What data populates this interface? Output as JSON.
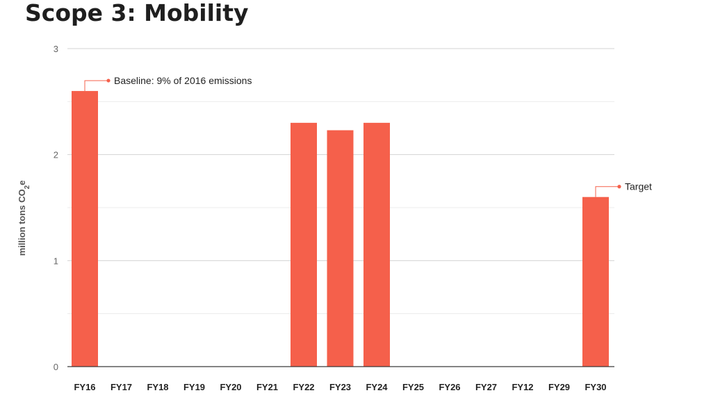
{
  "chart_data": {
    "type": "bar",
    "title": "Scope 3: Mobility",
    "ylabel": "million tons CO",
    "ylabel_subscript": "2",
    "ylabel_suffix": "e",
    "xlabel": "",
    "ylim": [
      0,
      3
    ],
    "yticks": [
      0,
      1,
      2,
      3
    ],
    "grid": true,
    "legend": "none",
    "bar_color": "#f5604b",
    "categories": [
      "FY16",
      "FY17",
      "FY18",
      "FY19",
      "FY20",
      "FY21",
      "FY22",
      "FY23",
      "FY24",
      "FY25",
      "FY26",
      "FY27",
      "FY12",
      "FY29",
      "FY30"
    ],
    "values": [
      2.6,
      0,
      0,
      0,
      0,
      0,
      2.3,
      2.23,
      2.3,
      0,
      0,
      0,
      0,
      0,
      1.6
    ],
    "annotations": [
      {
        "category": "FY16",
        "text": "Baseline: 9% of 2016 emissions"
      },
      {
        "category": "FY30",
        "text": "Target"
      }
    ]
  }
}
